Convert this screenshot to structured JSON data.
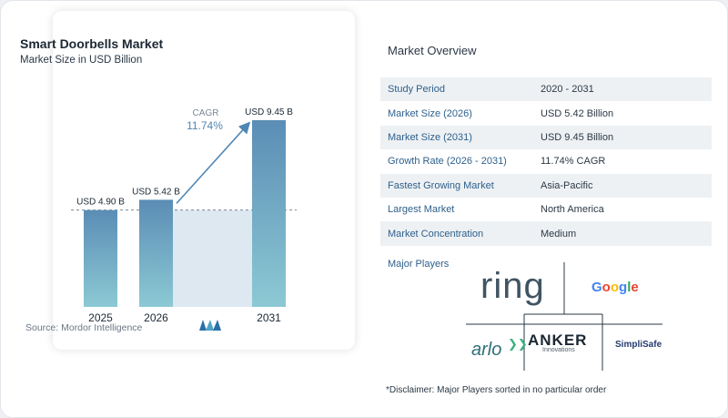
{
  "chart_data": {
    "type": "bar",
    "title": "Smart Doorbells Market",
    "subtitle": "Market Size in USD Billion",
    "categories": [
      "2025",
      "2026",
      "2031"
    ],
    "values": [
      4.9,
      5.42,
      9.45
    ],
    "data_labels": [
      "USD 4.90 B",
      "USD 5.42 B",
      "USD 9.45 B"
    ],
    "annotation": {
      "label": "CAGR",
      "value": "11.74%"
    },
    "grid": false,
    "legend": "none",
    "colors": {
      "bar_top": "#5b8db5",
      "bar_bottom": "#8cc9d4",
      "shade": "#dde8f1",
      "arrow": "#4f86b3"
    }
  },
  "source": "Source: Mordor Intelligence",
  "overview": {
    "title": "Market Overview",
    "rows": [
      {
        "label": "Study Period",
        "value": "2020 - 2031"
      },
      {
        "label": "Market Size (2026)",
        "value": "USD 5.42 Billion"
      },
      {
        "label": "Market Size (2031)",
        "value": "USD 9.45 Billion"
      },
      {
        "label": "Growth Rate (2026 - 2031)",
        "value": "11.74% CAGR"
      },
      {
        "label": "Fastest Growing Market",
        "value": "Asia-Pacific"
      },
      {
        "label": "Largest Market",
        "value": "North America"
      },
      {
        "label": "Market Concentration",
        "value": "Medium"
      }
    ]
  },
  "players": {
    "title": "Major Players",
    "logos": [
      "ring",
      "Google",
      "arlo",
      "ANKER",
      "Innovations",
      "SimpliSafe"
    ]
  },
  "disclaimer": "*Disclaimer: Major Players sorted in no particular order"
}
